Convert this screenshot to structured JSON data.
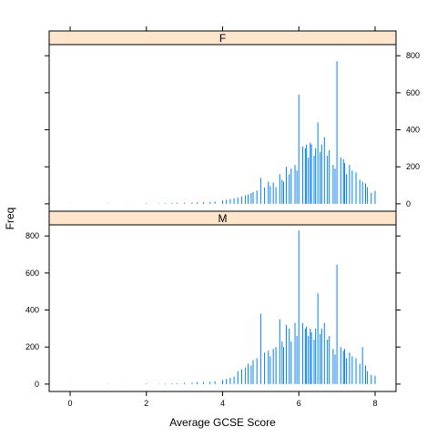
{
  "chart_data": {
    "type": "bar",
    "xlabel": "Average GCSE Score",
    "ylabel": "Freq",
    "xlim": [
      -0.55,
      8.55
    ],
    "ylim": [
      -40,
      860
    ],
    "x_ticks": [
      0,
      2,
      4,
      6,
      8
    ],
    "y_ticks": [
      0,
      200,
      400,
      600,
      800
    ],
    "colors": {
      "bar": "#0080ff",
      "strip": "#ffe5cc",
      "border": "#000000"
    },
    "panels": [
      {
        "strip": "F",
        "y_axis_side": "right",
        "series": [
          [
            0,
            1
          ],
          [
            1,
            2
          ],
          [
            1.5,
            1
          ],
          [
            2,
            3
          ],
          [
            2.33,
            2
          ],
          [
            2.5,
            3
          ],
          [
            2.67,
            4
          ],
          [
            2.8,
            5
          ],
          [
            3,
            6
          ],
          [
            3.2,
            7
          ],
          [
            3.33,
            8
          ],
          [
            3.5,
            10
          ],
          [
            3.67,
            10
          ],
          [
            3.8,
            12
          ],
          [
            4,
            18
          ],
          [
            4.1,
            22
          ],
          [
            4.2,
            26
          ],
          [
            4.3,
            30
          ],
          [
            4.4,
            34
          ],
          [
            4.5,
            40
          ],
          [
            4.6,
            46
          ],
          [
            4.67,
            50
          ],
          [
            4.75,
            58
          ],
          [
            4.8,
            64
          ],
          [
            4.9,
            72
          ],
          [
            5,
            140
          ],
          [
            5.1,
            88
          ],
          [
            5.2,
            120
          ],
          [
            5.25,
            95
          ],
          [
            5.33,
            115
          ],
          [
            5.4,
            90
          ],
          [
            5.5,
            160
          ],
          [
            5.56,
            130
          ],
          [
            5.6,
            120
          ],
          [
            5.67,
            200
          ],
          [
            5.75,
            160
          ],
          [
            5.8,
            190
          ],
          [
            5.9,
            210
          ],
          [
            5.95,
            180
          ],
          [
            6,
            590
          ],
          [
            6.1,
            310
          ],
          [
            6.17,
            300
          ],
          [
            6.2,
            320
          ],
          [
            6.25,
            250
          ],
          [
            6.3,
            330
          ],
          [
            6.33,
            320
          ],
          [
            6.4,
            260
          ],
          [
            6.44,
            300
          ],
          [
            6.5,
            440
          ],
          [
            6.56,
            280
          ],
          [
            6.6,
            320
          ],
          [
            6.67,
            360
          ],
          [
            6.75,
            260
          ],
          [
            6.8,
            290
          ],
          [
            6.9,
            210
          ],
          [
            6.95,
            190
          ],
          [
            7,
            770
          ],
          [
            7.1,
            250
          ],
          [
            7.17,
            240
          ],
          [
            7.2,
            220
          ],
          [
            7.25,
            160
          ],
          [
            7.33,
            210
          ],
          [
            7.4,
            180
          ],
          [
            7.5,
            170
          ],
          [
            7.6,
            130
          ],
          [
            7.67,
            120
          ],
          [
            7.75,
            110
          ],
          [
            7.8,
            90
          ],
          [
            7.9,
            60
          ],
          [
            8,
            70
          ]
        ]
      },
      {
        "strip": "M",
        "y_axis_side": "left",
        "series": [
          [
            0,
            1
          ],
          [
            1,
            2
          ],
          [
            1.5,
            1
          ],
          [
            2,
            3
          ],
          [
            2.33,
            2
          ],
          [
            2.5,
            3
          ],
          [
            2.67,
            4
          ],
          [
            2.8,
            5
          ],
          [
            3,
            7
          ],
          [
            3.2,
            8
          ],
          [
            3.33,
            10
          ],
          [
            3.5,
            12
          ],
          [
            3.67,
            12
          ],
          [
            3.8,
            15
          ],
          [
            4,
            22
          ],
          [
            4.1,
            28
          ],
          [
            4.2,
            34
          ],
          [
            4.3,
            40
          ],
          [
            4.4,
            70
          ],
          [
            4.5,
            80
          ],
          [
            4.6,
            90
          ],
          [
            4.67,
            110
          ],
          [
            4.75,
            100
          ],
          [
            4.8,
            130
          ],
          [
            4.9,
            140
          ],
          [
            5,
            380
          ],
          [
            5.1,
            170
          ],
          [
            5.2,
            180
          ],
          [
            5.25,
            150
          ],
          [
            5.33,
            190
          ],
          [
            5.4,
            200
          ],
          [
            5.5,
            350
          ],
          [
            5.56,
            230
          ],
          [
            5.6,
            200
          ],
          [
            5.67,
            320
          ],
          [
            5.75,
            300
          ],
          [
            5.8,
            230
          ],
          [
            5.9,
            330
          ],
          [
            5.95,
            260
          ],
          [
            6,
            830
          ],
          [
            6.1,
            330
          ],
          [
            6.17,
            300
          ],
          [
            6.2,
            310
          ],
          [
            6.25,
            260
          ],
          [
            6.3,
            300
          ],
          [
            6.33,
            280
          ],
          [
            6.4,
            240
          ],
          [
            6.44,
            300
          ],
          [
            6.5,
            490
          ],
          [
            6.56,
            270
          ],
          [
            6.6,
            300
          ],
          [
            6.67,
            330
          ],
          [
            6.75,
            240
          ],
          [
            6.8,
            260
          ],
          [
            6.9,
            190
          ],
          [
            6.95,
            160
          ],
          [
            7,
            645
          ],
          [
            7.1,
            200
          ],
          [
            7.17,
            180
          ],
          [
            7.2,
            190
          ],
          [
            7.25,
            140
          ],
          [
            7.33,
            170
          ],
          [
            7.4,
            150
          ],
          [
            7.5,
            140
          ],
          [
            7.6,
            110
          ],
          [
            7.67,
            200
          ],
          [
            7.75,
            100
          ],
          [
            7.8,
            70
          ],
          [
            7.9,
            50
          ],
          [
            8,
            45
          ]
        ]
      }
    ]
  }
}
